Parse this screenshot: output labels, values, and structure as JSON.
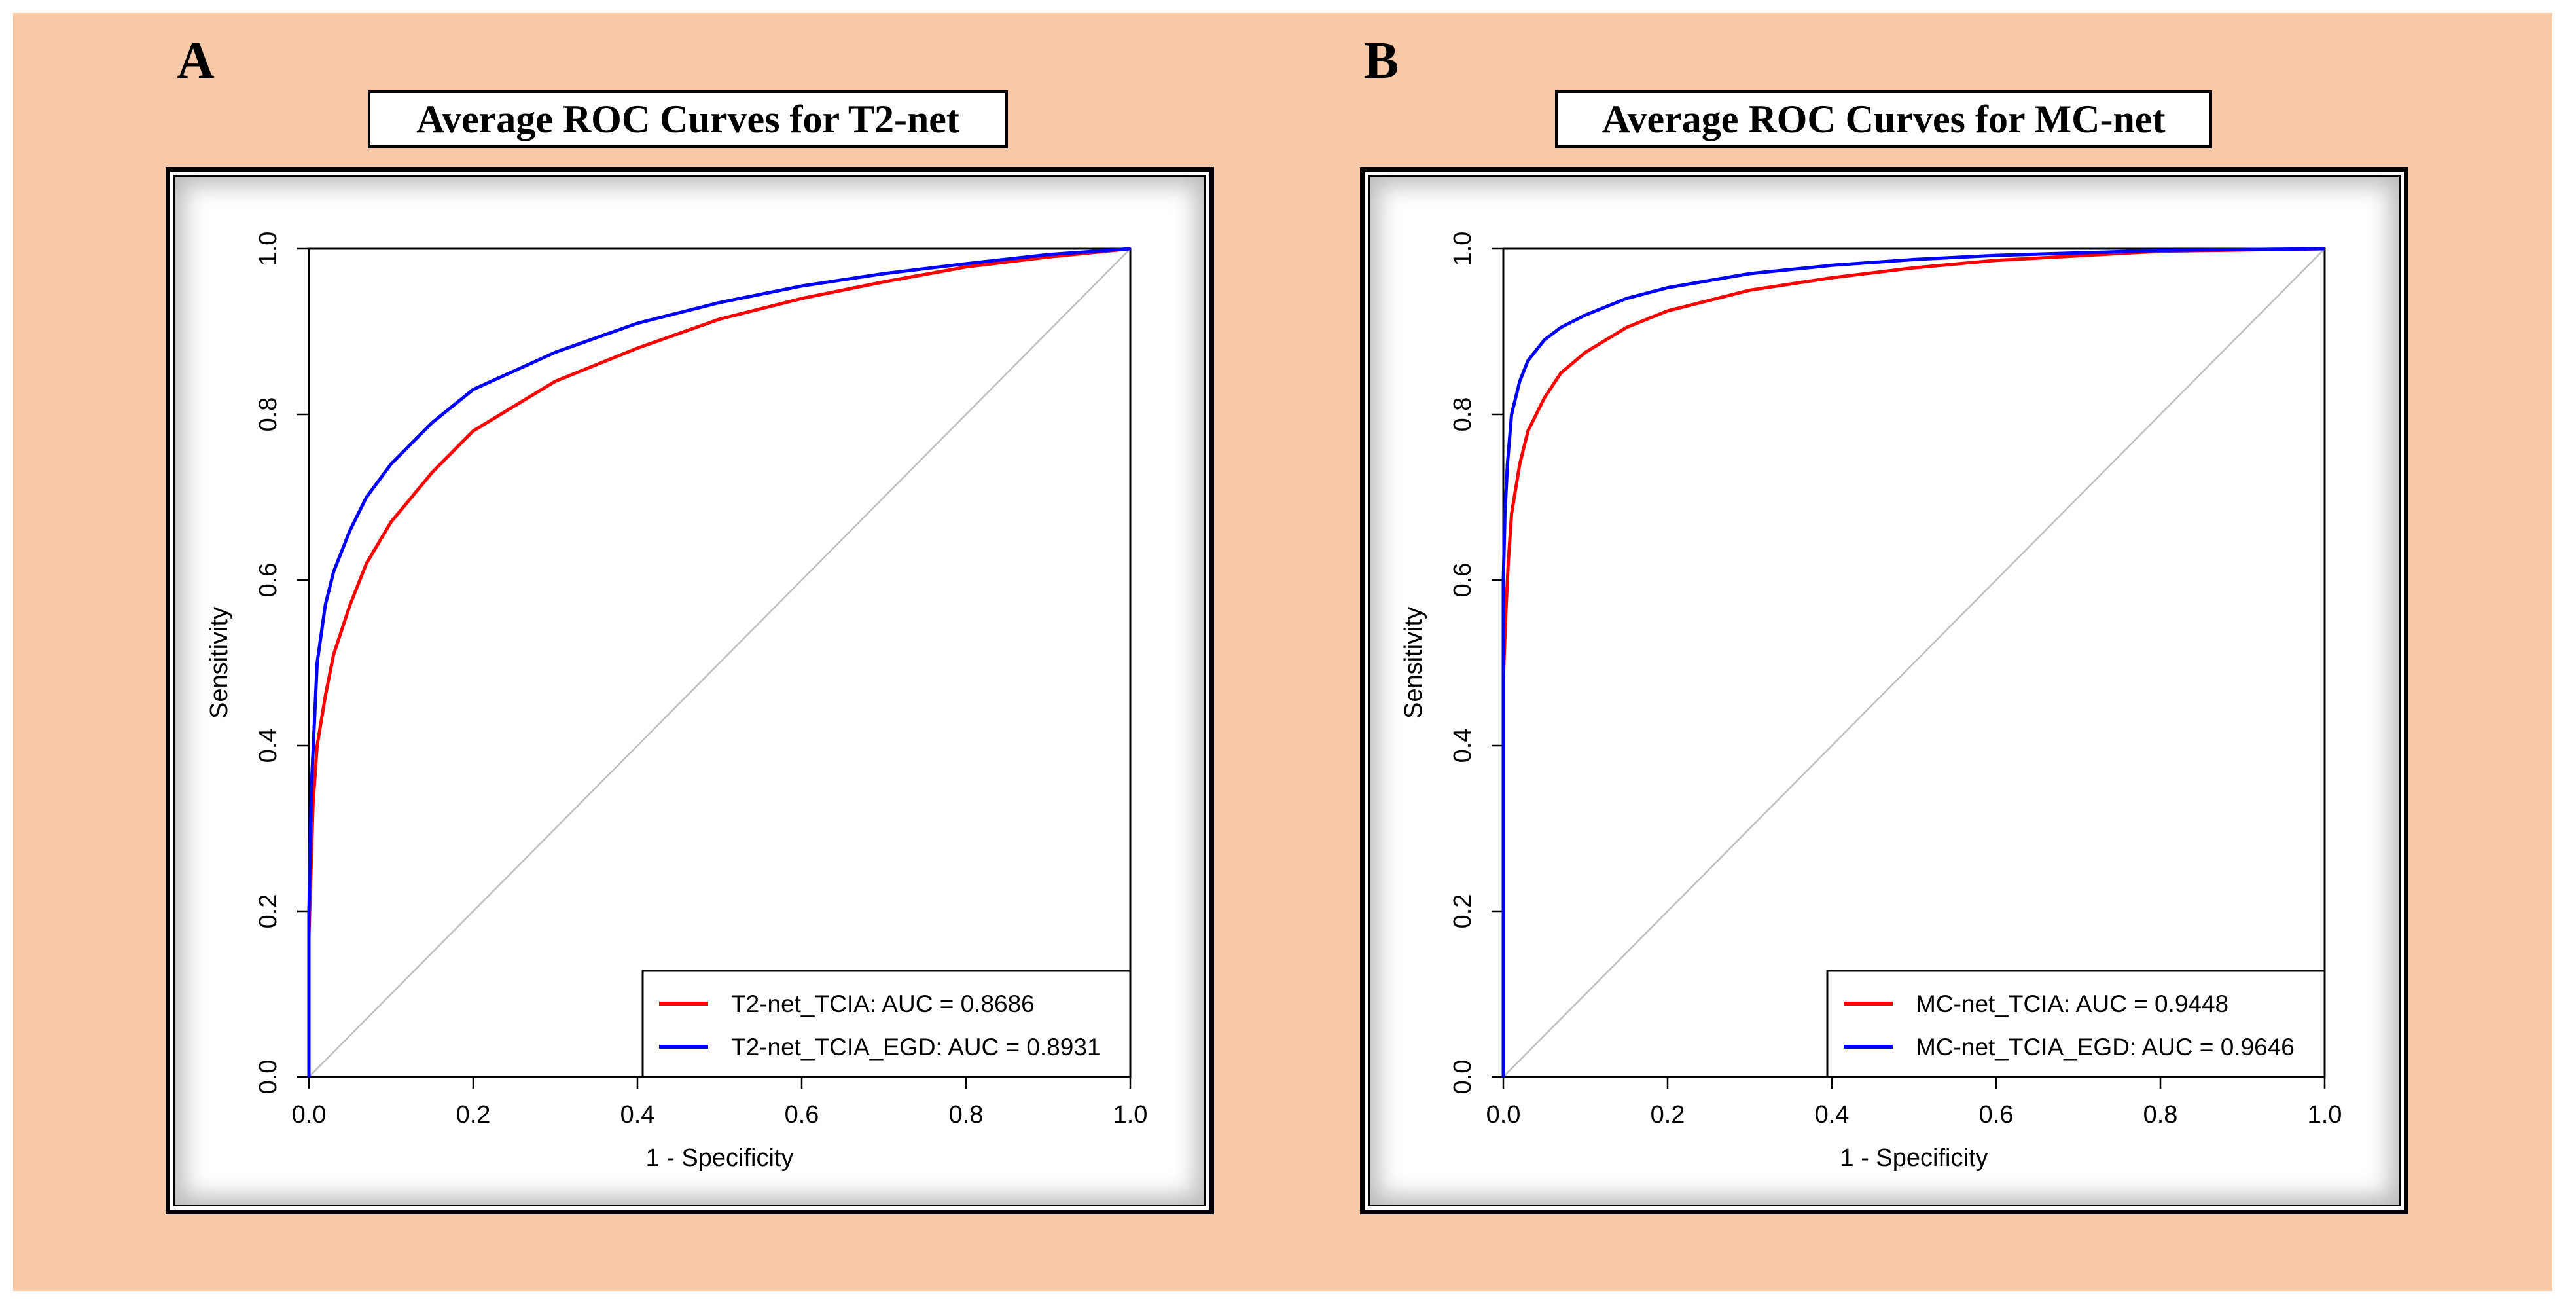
{
  "panels": [
    {
      "letter": "A",
      "title": "Average ROC Curves for T2-net",
      "chart_data": {
        "type": "line",
        "xlabel": "1 - Specificity",
        "ylabel": "Sensitivity",
        "xlim": [
          0,
          1
        ],
        "ylim": [
          0,
          1
        ],
        "xticks": [
          "0.0",
          "0.2",
          "0.4",
          "0.6",
          "0.8",
          "1.0"
        ],
        "yticks": [
          "0.0",
          "0.2",
          "0.4",
          "0.6",
          "0.8",
          "1.0"
        ],
        "diagonal": true,
        "legend_position": "bottom-right",
        "series": [
          {
            "name": "T2-net_TCIA: AUC = 0.8686",
            "color": "#ff0000",
            "x": [
              0,
              0,
              0.005,
              0.01,
              0.02,
              0.03,
              0.05,
              0.07,
              0.1,
              0.15,
              0.2,
              0.3,
              0.4,
              0.5,
              0.6,
              0.7,
              0.8,
              0.9,
              1.0
            ],
            "y": [
              0,
              0.17,
              0.33,
              0.4,
              0.46,
              0.51,
              0.57,
              0.62,
              0.67,
              0.73,
              0.78,
              0.84,
              0.88,
              0.915,
              0.94,
              0.96,
              0.978,
              0.99,
              1.0
            ]
          },
          {
            "name": "T2-net_TCIA_EGD: AUC = 0.8931",
            "color": "#0000ff",
            "x": [
              0,
              0,
              0.003,
              0.01,
              0.02,
              0.03,
              0.05,
              0.07,
              0.1,
              0.15,
              0.2,
              0.3,
              0.4,
              0.5,
              0.6,
              0.7,
              0.8,
              0.9,
              1.0
            ],
            "y": [
              0,
              0.2,
              0.35,
              0.5,
              0.57,
              0.61,
              0.66,
              0.7,
              0.74,
              0.79,
              0.83,
              0.875,
              0.91,
              0.935,
              0.955,
              0.97,
              0.982,
              0.993,
              1.0
            ]
          }
        ]
      }
    },
    {
      "letter": "B",
      "title": "Average ROC Curves for MC-net",
      "chart_data": {
        "type": "line",
        "xlabel": "1 - Specificity",
        "ylabel": "Sensitivity",
        "xlim": [
          0,
          1
        ],
        "ylim": [
          0,
          1
        ],
        "xticks": [
          "0.0",
          "0.2",
          "0.4",
          "0.6",
          "0.8",
          "1.0"
        ],
        "yticks": [
          "0.0",
          "0.2",
          "0.4",
          "0.6",
          "0.8",
          "1.0"
        ],
        "diagonal": true,
        "legend_position": "bottom-right",
        "series": [
          {
            "name": "MC-net_TCIA: AUC = 0.9448",
            "color": "#ff0000",
            "x": [
              0,
              0,
              0.003,
              0.006,
              0.01,
              0.02,
              0.03,
              0.05,
              0.07,
              0.1,
              0.15,
              0.2,
              0.3,
              0.4,
              0.5,
              0.6,
              0.8,
              1.0
            ],
            "y": [
              0,
              0.48,
              0.56,
              0.62,
              0.68,
              0.74,
              0.78,
              0.82,
              0.85,
              0.875,
              0.905,
              0.925,
              0.95,
              0.965,
              0.977,
              0.986,
              0.997,
              1.0
            ]
          },
          {
            "name": "MC-net_TCIA_EGD: AUC = 0.9646",
            "color": "#0000ff",
            "x": [
              0,
              0,
              0.002,
              0.005,
              0.01,
              0.02,
              0.03,
              0.05,
              0.07,
              0.1,
              0.15,
              0.2,
              0.3,
              0.4,
              0.5,
              0.6,
              0.8,
              1.0
            ],
            "y": [
              0,
              0.6,
              0.68,
              0.74,
              0.8,
              0.84,
              0.865,
              0.89,
              0.905,
              0.92,
              0.94,
              0.953,
              0.97,
              0.98,
              0.987,
              0.992,
              0.998,
              1.0
            ]
          }
        ]
      }
    }
  ]
}
